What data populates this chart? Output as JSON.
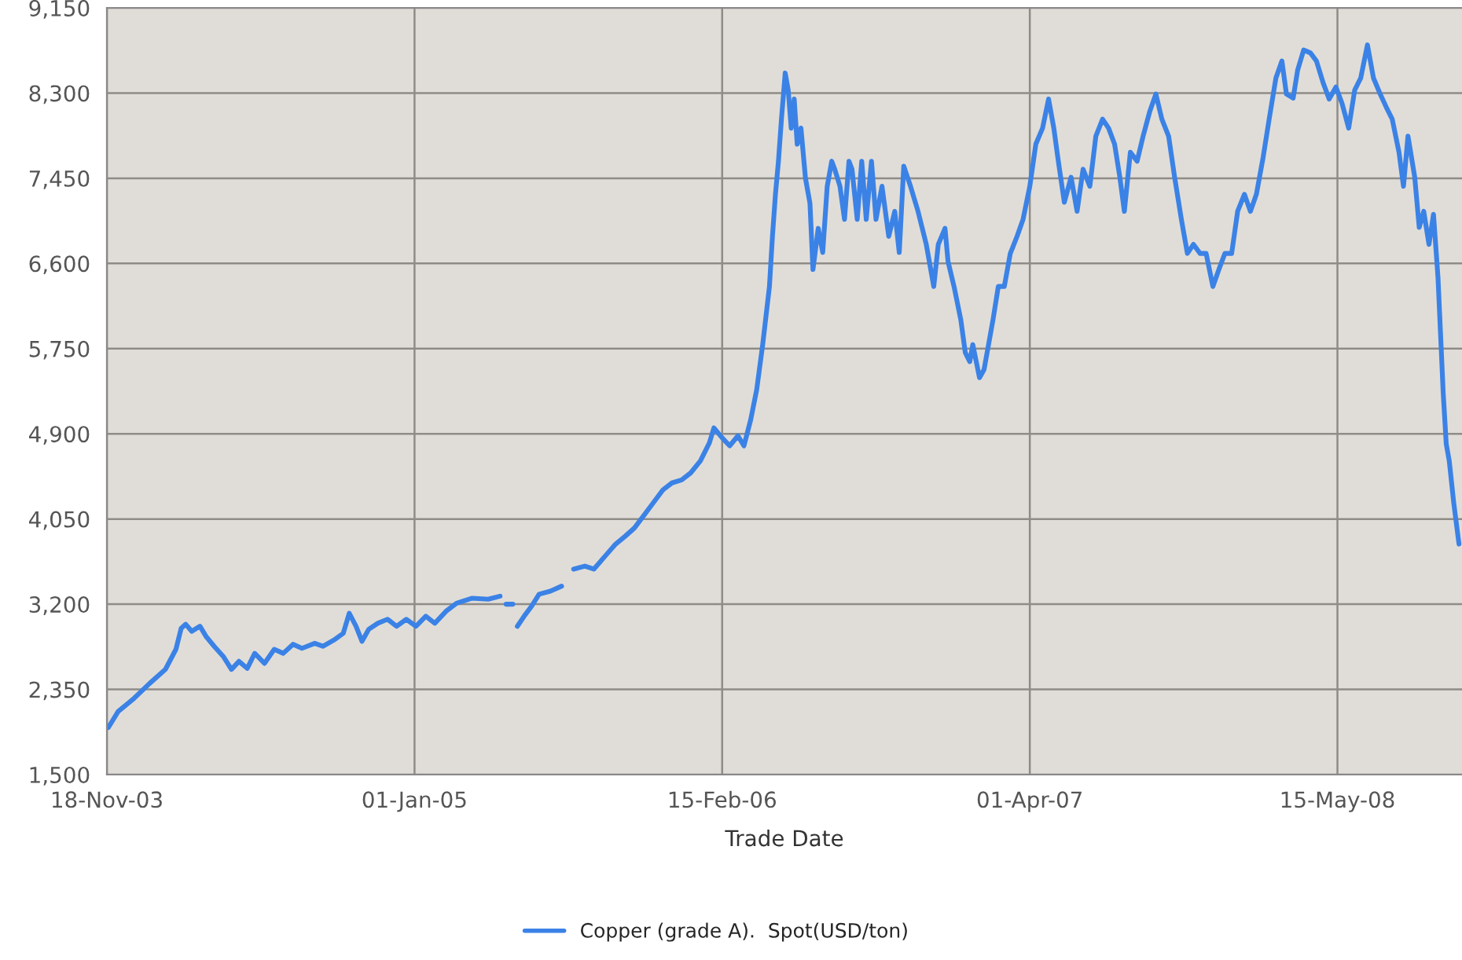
{
  "chart_data": {
    "type": "line",
    "xlabel": "Trade Date",
    "x": [
      "2003-11-20",
      "2003-12-03",
      "2003-12-24",
      "2004-01-14",
      "2004-02-04",
      "2004-02-18",
      "2004-02-25",
      "2004-03-02",
      "2004-03-10",
      "2004-03-21",
      "2004-03-29",
      "2004-04-09",
      "2004-04-21",
      "2004-05-02",
      "2004-05-12",
      "2004-05-23",
      "2004-06-02",
      "2004-06-15",
      "2004-06-28",
      "2004-07-10",
      "2004-07-23",
      "2004-08-04",
      "2004-08-21",
      "2004-09-01",
      "2004-09-17",
      "2004-09-28",
      "2004-10-06",
      "2004-10-15",
      "2004-10-23",
      "2004-11-01",
      "2004-11-13",
      "2004-11-26",
      "2004-12-08",
      "2004-12-21",
      "2005-01-03",
      "2005-01-16",
      "2005-01-28",
      "2005-02-12",
      "2005-02-26",
      "2005-03-19",
      "2005-04-09",
      "2005-04-25",
      "2005-04-29",
      "2005-05-03",
      "2005-05-12",
      "2005-05-15",
      "2005-05-18",
      "2005-05-27",
      "2005-06-06",
      "2005-06-16",
      "2005-07-01",
      "2005-07-16",
      "2005-07-24",
      "2005-08-01",
      "2005-08-16",
      "2005-08-28",
      "2005-09-12",
      "2005-09-26",
      "2005-10-09",
      "2005-10-21",
      "2005-11-03",
      "2005-11-15",
      "2005-11-28",
      "2005-12-10",
      "2005-12-23",
      "2006-01-04",
      "2006-01-17",
      "2006-01-29",
      "2006-02-04",
      "2006-02-15",
      "2006-02-25",
      "2006-03-08",
      "2006-03-16",
      "2006-03-25",
      "2006-04-02",
      "2006-04-10",
      "2006-04-19",
      "2006-04-23",
      "2006-04-27",
      "2006-05-01",
      "2006-05-05",
      "2006-05-10",
      "2006-05-14",
      "2006-05-18",
      "2006-05-22",
      "2006-05-26",
      "2006-05-31",
      "2006-06-06",
      "2006-06-12",
      "2006-06-16",
      "2006-06-23",
      "2006-06-29",
      "2006-07-05",
      "2006-07-11",
      "2006-07-15",
      "2006-07-22",
      "2006-07-28",
      "2006-08-03",
      "2006-08-07",
      "2006-08-14",
      "2006-08-20",
      "2006-08-26",
      "2006-09-02",
      "2006-09-08",
      "2006-09-16",
      "2006-09-25",
      "2006-10-03",
      "2006-10-09",
      "2006-10-15",
      "2006-10-24",
      "2006-11-03",
      "2006-11-14",
      "2006-11-24",
      "2006-11-30",
      "2006-12-09",
      "2006-12-13",
      "2006-12-21",
      "2006-12-30",
      "2007-01-05",
      "2007-01-11",
      "2007-01-15",
      "2007-01-24",
      "2007-01-30",
      "2007-02-05",
      "2007-02-11",
      "2007-02-18",
      "2007-02-26",
      "2007-03-06",
      "2007-03-15",
      "2007-03-23",
      "2007-04-01",
      "2007-04-09",
      "2007-04-18",
      "2007-04-26",
      "2007-05-03",
      "2007-05-09",
      "2007-05-17",
      "2007-05-26",
      "2007-06-03",
      "2007-06-11",
      "2007-06-20",
      "2007-06-28",
      "2007-07-07",
      "2007-07-15",
      "2007-07-23",
      "2007-07-30",
      "2007-08-05",
      "2007-08-13",
      "2007-08-22",
      "2007-08-30",
      "2007-09-08",
      "2007-09-16",
      "2007-09-24",
      "2007-10-03",
      "2007-10-11",
      "2007-10-20",
      "2007-10-28",
      "2007-11-05",
      "2007-11-14",
      "2007-11-22",
      "2007-12-01",
      "2007-12-09",
      "2007-12-17",
      "2007-12-26",
      "2008-01-03",
      "2008-01-12",
      "2008-01-20",
      "2008-01-28",
      "2008-02-06",
      "2008-02-14",
      "2008-02-23",
      "2008-03-02",
      "2008-03-08",
      "2008-03-17",
      "2008-03-23",
      "2008-03-31",
      "2008-04-09",
      "2008-04-17",
      "2008-04-26",
      "2008-05-04",
      "2008-05-13",
      "2008-05-21",
      "2008-05-30",
      "2008-06-07",
      "2008-06-15",
      "2008-06-24",
      "2008-07-02",
      "2008-07-11",
      "2008-07-19",
      "2008-07-27",
      "2008-08-05",
      "2008-08-11",
      "2008-08-17",
      "2008-08-26",
      "2008-09-01",
      "2008-09-07",
      "2008-09-14",
      "2008-09-20",
      "2008-09-26",
      "2008-10-03",
      "2008-10-07",
      "2008-10-11",
      "2008-10-17",
      "2008-10-24"
    ],
    "series": [
      {
        "name": "Copper (grade A).  Spot(USD/ton)",
        "color": "#3b82e6",
        "values": [
          1970,
          2130,
          2260,
          2410,
          2550,
          2750,
          2960,
          3000,
          2930,
          2980,
          2880,
          2780,
          2680,
          2550,
          2630,
          2560,
          2710,
          2610,
          2750,
          2710,
          2800,
          2760,
          2810,
          2780,
          2850,
          2910,
          3110,
          2980,
          2830,
          2950,
          3010,
          3050,
          2980,
          3050,
          2980,
          3080,
          3010,
          3130,
          3210,
          3260,
          3250,
          3280,
          null,
          3200,
          3200,
          null,
          2980,
          3080,
          3180,
          3300,
          3330,
          3380,
          null,
          3550,
          3580,
          3550,
          3680,
          3800,
          3880,
          3960,
          4090,
          4210,
          4340,
          4410,
          4440,
          4510,
          4630,
          4810,
          4960,
          4860,
          4780,
          4880,
          4780,
          5040,
          5340,
          5790,
          6370,
          6870,
          7290,
          7620,
          8040,
          8500,
          8330,
          7950,
          8240,
          7790,
          7950,
          7450,
          7200,
          6540,
          6950,
          6710,
          7370,
          7620,
          7540,
          7370,
          7040,
          7620,
          7540,
          7040,
          7620,
          7040,
          7620,
          7040,
          7370,
          6870,
          7120,
          6710,
          7570,
          7370,
          7120,
          6790,
          6370,
          6790,
          6950,
          6620,
          6370,
          6040,
          5710,
          5620,
          5790,
          5460,
          5540,
          5790,
          6040,
          6370,
          6370,
          6700,
          6870,
          7040,
          7370,
          7790,
          7950,
          8240,
          7950,
          7620,
          7210,
          7460,
          7120,
          7540,
          7370,
          7870,
          8040,
          7950,
          7790,
          7460,
          7120,
          7710,
          7620,
          7870,
          8120,
          8290,
          8040,
          7870,
          7460,
          7040,
          6700,
          6790,
          6700,
          6700,
          6370,
          6540,
          6700,
          6700,
          7120,
          7290,
          7120,
          7290,
          7660,
          8040,
          8450,
          8620,
          8290,
          8250,
          8530,
          8730,
          8700,
          8620,
          8400,
          8240,
          8360,
          8200,
          7950,
          8330,
          8450,
          8780,
          8450,
          8290,
          8160,
          8040,
          7710,
          7370,
          7870,
          7460,
          6960,
          7120,
          6790,
          7090,
          6460,
          5300,
          4800,
          4630,
          4210,
          3800
        ]
      }
    ],
    "xlim": [
      "2003-11-18",
      "2008-10-28"
    ],
    "xticks": [
      {
        "value": "2003-11-18",
        "label": "18-Nov-03"
      },
      {
        "value": "2005-01-01",
        "label": "01-Jan-05"
      },
      {
        "value": "2006-02-15",
        "label": "15-Feb-06"
      },
      {
        "value": "2007-04-01",
        "label": "01-Apr-07"
      },
      {
        "value": "2008-05-15",
        "label": "15-May-08"
      }
    ],
    "ylim": [
      1500,
      9150
    ],
    "yticks": [
      {
        "value": 1500,
        "label": "1,500"
      },
      {
        "value": 2350,
        "label": "2,350"
      },
      {
        "value": 3200,
        "label": "3,200"
      },
      {
        "value": 4050,
        "label": "4,050"
      },
      {
        "value": 4900,
        "label": "4,900"
      },
      {
        "value": 5750,
        "label": "5,750"
      },
      {
        "value": 6600,
        "label": "6,600"
      },
      {
        "value": 7450,
        "label": "7,450"
      },
      {
        "value": 8300,
        "label": "8,300"
      },
      {
        "value": 9150,
        "label": "9,150"
      }
    ],
    "grid": true,
    "legend": "bottom",
    "line_style": "solid",
    "marker": "none"
  }
}
